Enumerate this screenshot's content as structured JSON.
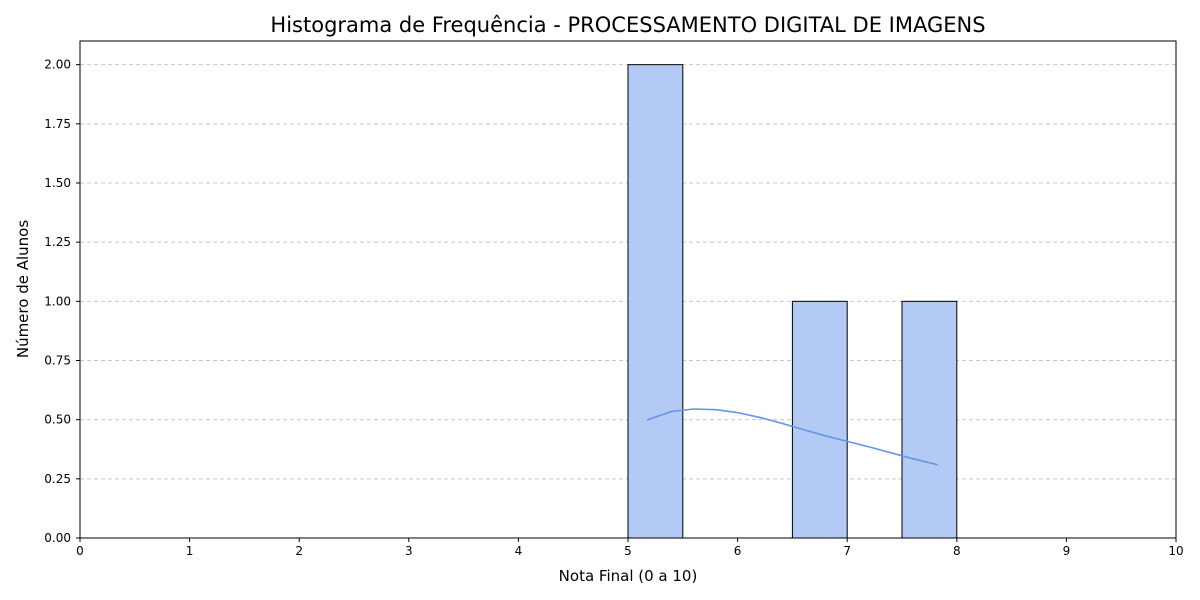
{
  "chart_data": {
    "type": "bar",
    "title": "Histograma de Frequência - PROCESSAMENTO DIGITAL DE IMAGENS",
    "xlabel": "Nota Final (0 a 10)",
    "ylabel": "Número de Alunos",
    "xlim": [
      0,
      10
    ],
    "ylim": [
      0,
      2.1
    ],
    "x_ticks": [
      0,
      1,
      2,
      3,
      4,
      5,
      6,
      7,
      8,
      9,
      10
    ],
    "x_tick_labels": [
      "0",
      "1",
      "2",
      "3",
      "4",
      "5",
      "6",
      "7",
      "8",
      "9",
      "10"
    ],
    "y_ticks": [
      0,
      0.25,
      0.5,
      0.75,
      1.0,
      1.25,
      1.5,
      1.75,
      2.0
    ],
    "y_tick_labels": [
      "0.00",
      "0.25",
      "0.50",
      "0.75",
      "1.00",
      "1.25",
      "1.50",
      "1.75",
      "2.00"
    ],
    "bins": [
      {
        "start": 5.0,
        "end": 5.5,
        "value": 2
      },
      {
        "start": 6.5,
        "end": 7.0,
        "value": 1
      },
      {
        "start": 7.5,
        "end": 8.0,
        "value": 1
      }
    ],
    "kde_curve": {
      "x": [
        5.18,
        5.4,
        5.6,
        5.8,
        6.0,
        6.2,
        6.4,
        6.6,
        6.8,
        7.0,
        7.2,
        7.4,
        7.6,
        7.82
      ],
      "y": [
        0.5,
        0.535,
        0.545,
        0.542,
        0.53,
        0.51,
        0.485,
        0.458,
        0.432,
        0.408,
        0.385,
        0.36,
        0.335,
        0.31
      ]
    },
    "grid": "y-dashed",
    "colors": {
      "bar_fill": "#b2caf4",
      "bar_edge": "#000000",
      "kde_line": "#6495ed",
      "grid": "#c8c8c8"
    }
  }
}
